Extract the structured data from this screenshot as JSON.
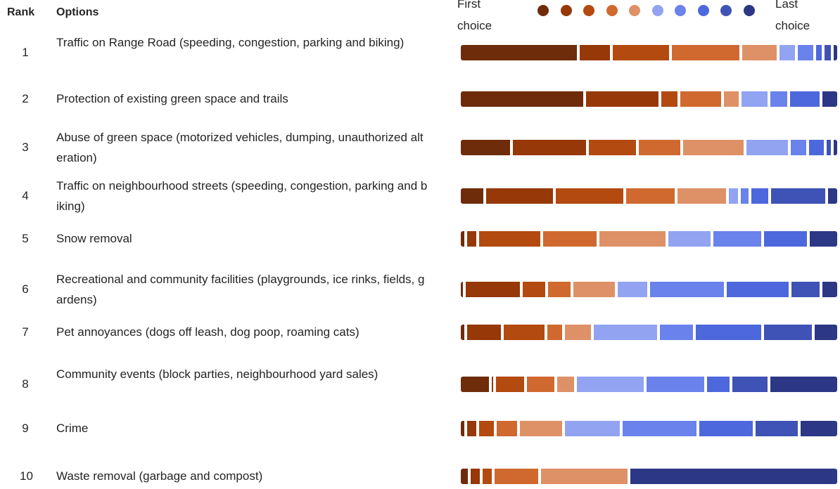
{
  "header": {
    "rank_label": "Rank",
    "options_label": "Options",
    "legend_first": "First choice",
    "legend_last": "Last choice"
  },
  "palette": [
    "#6e2c0a",
    "#963808",
    "#b34a0f",
    "#d0692f",
    "#de9167",
    "#92a3f2",
    "#6a82ec",
    "#4d68dc",
    "#3f52b5",
    "#2c3785"
  ],
  "rows": [
    {
      "rank": "1",
      "option": "Traffic on Range Road (speeding, congestion, parking and biking)",
      "shares": [
        30,
        8,
        14.5,
        17.5,
        9,
        4,
        4,
        1.5,
        1.5,
        1
      ]
    },
    {
      "rank": "2",
      "option": "Protection of existing green space and trails",
      "shares": [
        33,
        19.5,
        4.5,
        11,
        4,
        7,
        4.5,
        8,
        0,
        4
      ]
    },
    {
      "rank": "3",
      "option": "Abuse of green space (motorized vehicles, dumping, unauthorized alteration)",
      "shares": [
        13,
        19.5,
        12.5,
        11,
        16,
        11,
        4,
        4,
        1,
        1
      ]
    },
    {
      "rank": "4",
      "option": "Traffic on neighbourhood streets (speeding, congestion, parking and biking)",
      "shares": [
        6,
        18,
        18,
        13,
        13,
        2.5,
        2,
        4.5,
        14.5,
        2.5
      ]
    },
    {
      "rank": "5",
      "option": "Snow removal",
      "shares": [
        1,
        2.5,
        16.5,
        14.5,
        18,
        11.5,
        13,
        11.5,
        0,
        7.5
      ]
    },
    {
      "rank": "6",
      "option": "Recreational and community facilities (playgrounds, ice rinks, fields, gardens)",
      "shares": [
        0.5,
        14.5,
        6,
        6,
        11,
        8,
        19.5,
        16.5,
        7.5,
        4
      ]
    },
    {
      "rank": "7",
      "option": "Pet annoyances (dogs off leash, dog poop, roaming cats)",
      "shares": [
        1,
        9,
        11,
        4,
        7,
        17,
        9,
        17.5,
        13,
        6
      ]
    },
    {
      "rank": "8",
      "option": "Community events (block parties, neighbourhood yard sales)",
      "shares": [
        7.5,
        0.5,
        7.5,
        7.5,
        4.5,
        18,
        15.5,
        6,
        9.5,
        18
      ]
    },
    {
      "rank": "9",
      "option": "Crime",
      "shares": [
        1,
        2.5,
        4,
        5.5,
        11.5,
        15,
        20,
        14.5,
        11.5,
        10
      ]
    },
    {
      "rank": "10",
      "option": "Waste removal (garbage and compost)",
      "shares": [
        2,
        2.5,
        2.5,
        12,
        24,
        0,
        0,
        0,
        0,
        57
      ]
    }
  ]
}
